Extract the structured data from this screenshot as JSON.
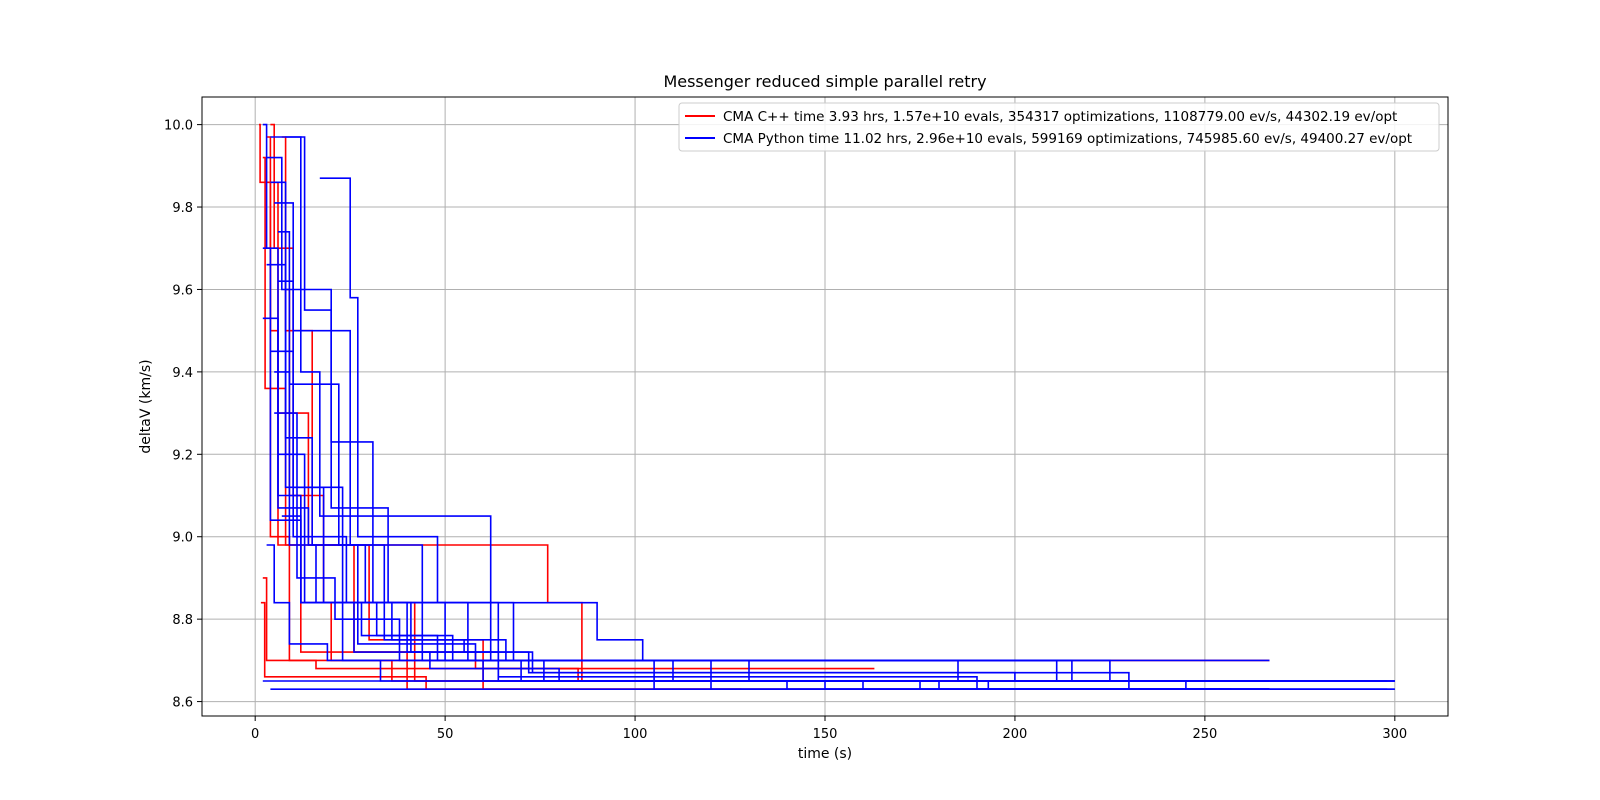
{
  "chart_data": {
    "type": "line",
    "title": "Messenger reduced simple parallel retry",
    "xlabel": "time (s)",
    "ylabel": "deltaV (km/s)",
    "xlim": [
      -14,
      314
    ],
    "ylim": [
      8.565,
      10.067
    ],
    "x_ticks": [
      0,
      50,
      100,
      150,
      200,
      250,
      300
    ],
    "y_ticks": [
      8.6,
      8.8,
      9.0,
      9.2,
      9.4,
      9.6,
      9.8,
      10.0
    ],
    "grid": true,
    "legend_position": "top-right",
    "series": [
      {
        "name": "CMA C++ time 3.93 hrs, 1.57e+10 evals, 354317 optimizations, 1108779.00 ev/s, 44302.19 ev/opt",
        "color": "#ff0000",
        "runs": [
          {
            "x": [
              1,
              1.3,
              1.3,
              4,
              4,
              9,
              9,
              30,
              30,
              267
            ],
            "y": [
              10.0,
              10.0,
              9.86,
              9.86,
              9.0,
              9.0,
              8.7,
              8.7,
              8.7,
              8.7
            ]
          },
          {
            "x": [
              2,
              2.6,
              2.6,
              8,
              8,
              75,
              75,
              77,
              77,
              84,
              84,
              86,
              86,
              267
            ],
            "y": [
              9.92,
              9.92,
              9.36,
              9.36,
              8.98,
              8.98,
              8.98,
              8.98,
              8.84,
              8.84,
              8.84,
              8.84,
              8.65,
              8.65
            ]
          },
          {
            "x": [
              3,
              4,
              4,
              6,
              6,
              12,
              12,
              58,
              58,
              130,
              130,
              163
            ],
            "y": [
              9.97,
              9.97,
              9.5,
              9.5,
              8.98,
              8.98,
              8.72,
              8.72,
              8.68,
              8.68,
              8.68,
              8.68
            ]
          },
          {
            "x": [
              4,
              5,
              5,
              10,
              10,
              18,
              18,
              42,
              42,
              267
            ],
            "y": [
              10.0,
              10.0,
              9.7,
              9.7,
              9.1,
              9.1,
              8.84,
              8.84,
              8.65,
              8.65
            ]
          },
          {
            "x": [
              5,
              6,
              6,
              14,
              14,
              26,
              26,
              40,
              40,
              128
            ],
            "y": [
              9.86,
              9.86,
              9.3,
              9.3,
              8.98,
              8.98,
              8.72,
              8.72,
              8.63,
              8.63
            ]
          },
          {
            "x": [
              7,
              8,
              8,
              15,
              15,
              30,
              30,
              60,
              60,
              267
            ],
            "y": [
              9.97,
              9.97,
              9.5,
              9.5,
              8.98,
              8.98,
              8.75,
              8.75,
              8.63,
              8.63
            ]
          },
          {
            "x": [
              8,
              9,
              9,
              12,
              12,
              20,
              20,
              36,
              36,
              135
            ],
            "y": [
              9.6,
              9.6,
              9.1,
              9.1,
              8.84,
              8.84,
              8.7,
              8.7,
              8.65,
              8.65
            ]
          },
          {
            "x": [
              2,
              3,
              3,
              16,
              16,
              85,
              85,
              150
            ],
            "y": [
              8.9,
              8.9,
              8.7,
              8.7,
              8.68,
              8.68,
              8.65,
              8.65
            ]
          },
          {
            "x": [
              1.5,
              2.5,
              2.5,
              5,
              5,
              45,
              45,
              267
            ],
            "y": [
              8.84,
              8.84,
              8.66,
              8.66,
              8.66,
              8.66,
              8.63,
              8.63
            ]
          }
        ]
      },
      {
        "name": "CMA Python time 11.02 hrs, 2.96e+10 evals, 599169 optimizations, 745985.60 ev/s, 49400.27 ev/opt",
        "color": "#0000ff",
        "runs": [
          {
            "x": [
              2,
              3,
              3,
              6,
              6,
              12,
              12,
              50,
              50,
              100,
              100,
              267
            ],
            "y": [
              10.0,
              10.0,
              9.7,
              9.7,
              9.1,
              9.1,
              8.84,
              8.84,
              8.7,
              8.7,
              8.7,
              8.7
            ]
          },
          {
            "x": [
              4,
              12,
              12,
              17,
              17,
              30,
              30,
              62,
              62,
              130,
              130,
              300
            ],
            "y": [
              9.97,
              9.97,
              9.4,
              9.4,
              9.05,
              9.05,
              9.05,
              9.05,
              8.7,
              8.7,
              8.65,
              8.65
            ]
          },
          {
            "x": [
              17,
              25,
              25,
              27,
              27,
              48,
              48,
              64,
              64,
              245,
              245,
              300
            ],
            "y": [
              9.87,
              9.87,
              9.58,
              9.58,
              9.0,
              9.0,
              8.84,
              8.84,
              8.65,
              8.65,
              8.63,
              8.63
            ]
          },
          {
            "x": [
              3,
              7,
              7,
              20,
              20,
              31,
              31,
              90,
              90,
              102,
              102,
              215,
              215,
              298
            ],
            "y": [
              9.92,
              9.92,
              9.6,
              9.6,
              9.23,
              9.23,
              8.84,
              8.84,
              8.75,
              8.75,
              8.7,
              8.7,
              8.65,
              8.65
            ]
          },
          {
            "x": [
              5,
              10,
              10,
              25,
              25,
              34,
              34,
              55,
              55,
              73,
              73,
              230,
              230,
              300
            ],
            "y": [
              9.81,
              9.81,
              9.5,
              9.5,
              8.98,
              8.98,
              8.75,
              8.75,
              8.72,
              8.72,
              8.67,
              8.67,
              8.63,
              8.63
            ]
          },
          {
            "x": [
              6,
              9,
              9,
              22,
              22,
              44,
              44,
              76,
              76,
              150,
              150,
              257
            ],
            "y": [
              9.74,
              9.74,
              9.37,
              9.37,
              8.98,
              8.98,
              8.7,
              8.7,
              8.65,
              8.65,
              8.63,
              8.63
            ]
          },
          {
            "x": [
              3,
              8,
              8,
              18,
              18,
              36,
              36,
              66,
              66,
              185,
              185,
              267
            ],
            "y": [
              9.66,
              9.66,
              9.12,
              9.12,
              8.84,
              8.84,
              8.75,
              8.75,
              8.7,
              8.7,
              8.65,
              8.65
            ]
          },
          {
            "x": [
              2,
              6,
              6,
              14,
              14,
              29,
              29,
              56,
              56,
              120,
              120,
              255
            ],
            "y": [
              9.53,
              9.53,
              9.07,
              9.07,
              8.98,
              8.98,
              8.84,
              8.84,
              8.7,
              8.7,
              8.63,
              8.63
            ]
          },
          {
            "x": [
              4,
              10,
              10,
              24,
              24,
              40,
              40,
              72,
              72,
              200,
              200,
              300
            ],
            "y": [
              9.45,
              9.45,
              9.0,
              9.0,
              8.84,
              8.84,
              8.72,
              8.72,
              8.67,
              8.67,
              8.65,
              8.65
            ]
          },
          {
            "x": [
              5,
              11,
              11,
              21,
              21,
              38,
              38,
              60,
              60,
              160,
              160,
              267
            ],
            "y": [
              9.3,
              9.3,
              8.9,
              8.9,
              8.8,
              8.8,
              8.7,
              8.7,
              8.65,
              8.65,
              8.63,
              8.63
            ]
          },
          {
            "x": [
              6,
              13,
              13,
              28,
              28,
              52,
              52,
              110,
              110,
              193,
              193,
              267
            ],
            "y": [
              9.2,
              9.2,
              8.84,
              8.84,
              8.76,
              8.76,
              8.7,
              8.7,
              8.65,
              8.65,
              8.63,
              8.63
            ]
          },
          {
            "x": [
              7,
              12,
              12,
              26,
              26,
              46,
              46,
              80,
              80,
              180,
              180,
              267
            ],
            "y": [
              9.05,
              9.05,
              8.84,
              8.84,
              8.72,
              8.72,
              8.68,
              8.68,
              8.65,
              8.65,
              8.63,
              8.63
            ]
          },
          {
            "x": [
              3,
              5,
              5,
              9,
              9,
              19,
              19,
              33,
              33,
              140,
              140,
              257
            ],
            "y": [
              8.98,
              8.98,
              8.84,
              8.84,
              8.74,
              8.74,
              8.7,
              8.7,
              8.65,
              8.65,
              8.63,
              8.63
            ]
          },
          {
            "x": [
              4,
              8,
              8,
              15,
              15,
              27,
              27,
              58,
              58,
              211,
              211,
              267
            ],
            "y": [
              9.86,
              9.86,
              9.24,
              9.24,
              8.98,
              8.98,
              8.74,
              8.74,
              8.7,
              8.7,
              8.65,
              8.65
            ]
          },
          {
            "x": [
              2,
              4,
              4,
              12,
              12,
              23,
              23,
              70,
              70,
              175,
              175,
              298
            ],
            "y": [
              9.7,
              9.7,
              9.04,
              9.04,
              8.84,
              8.84,
              8.7,
              8.7,
              8.65,
              8.65,
              8.63,
              8.63
            ]
          },
          {
            "x": [
              8,
              13,
              13,
              20,
              20,
              35,
              35,
              68,
              68,
              225,
              225,
              300
            ],
            "y": [
              9.97,
              9.97,
              9.55,
              9.55,
              9.07,
              9.07,
              8.84,
              8.84,
              8.7,
              8.7,
              8.65,
              8.65
            ]
          },
          {
            "x": [
              5,
              9,
              9,
              16,
              16,
              32,
              32,
              48,
              48,
              105,
              105,
              267
            ],
            "y": [
              9.4,
              9.4,
              8.98,
              8.98,
              8.84,
              8.84,
              8.76,
              8.76,
              8.7,
              8.7,
              8.63,
              8.63
            ]
          },
          {
            "x": [
              6,
              10,
              10,
              23,
              23,
              41,
              41,
              64,
              64,
              190,
              190,
              255
            ],
            "y": [
              9.62,
              9.62,
              9.12,
              9.12,
              8.84,
              8.84,
              8.72,
              8.72,
              8.66,
              8.66,
              8.63,
              8.63
            ]
          },
          {
            "x": [
              4,
              267
            ],
            "y": [
              8.63,
              8.63
            ]
          },
          {
            "x": [
              2,
              300
            ],
            "y": [
              8.65,
              8.65
            ]
          }
        ]
      }
    ]
  }
}
